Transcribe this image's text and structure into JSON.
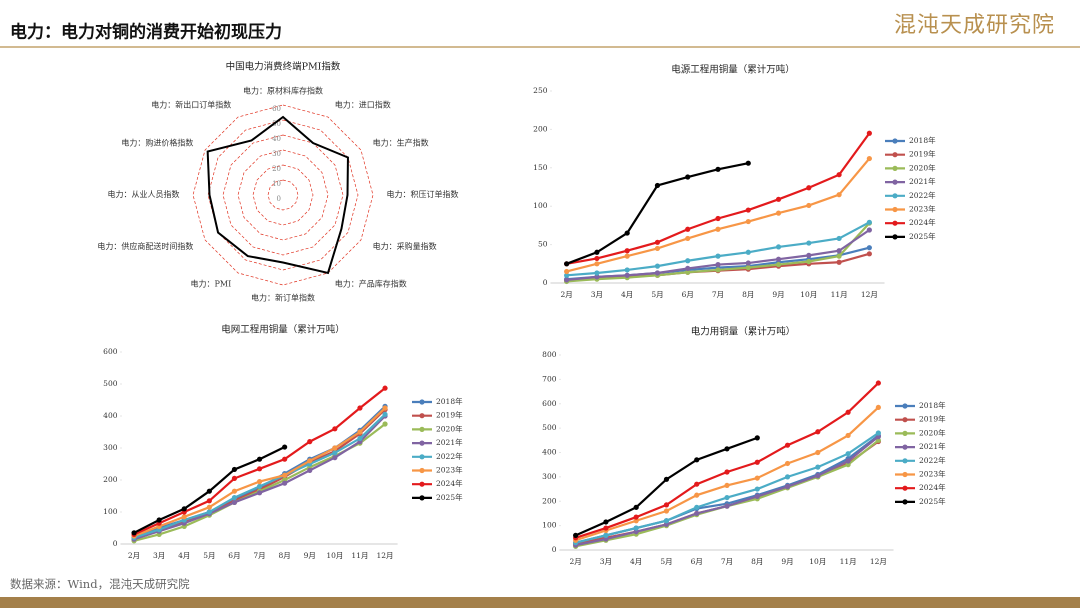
{
  "header": {
    "title": "电力：电力对铜的消费开始初现压力",
    "logo": "混沌天成研究院"
  },
  "footer": {
    "source": "数据来源：Wind，混沌天成研究院"
  },
  "chart_data": [
    {
      "type": "radar",
      "title": "中国电力消费终端PMI指数",
      "categories": [
        "电力：原材料库存指数",
        "电力：进口指数",
        "电力：生产指数",
        "电力：积压订单指数",
        "电力：采购量指数",
        "电力：产品库存指数",
        "电力：新订单指数",
        "电力：PMI",
        "电力：供应商配送时间指数",
        "电力：从业人员指数",
        "电力：购进价格指数",
        "电力：新出口订单指数"
      ],
      "values": [
        52,
        40,
        50,
        43,
        45,
        60,
        45,
        47,
        50,
        49,
        58,
        42
      ],
      "color": "#000000",
      "grid_color": "#e0301e",
      "ylim": [
        0,
        60
      ],
      "yticks": [
        0,
        10,
        20,
        30,
        40,
        50,
        60
      ]
    },
    {
      "type": "line",
      "title": "电源工程用铜量（累计万吨）",
      "categories": [
        "2月",
        "3月",
        "4月",
        "5月",
        "6月",
        "7月",
        "8月",
        "9月",
        "10月",
        "11月",
        "12月"
      ],
      "ylim": [
        0,
        250
      ],
      "yticks": [
        0,
        50,
        100,
        150,
        200,
        250
      ],
      "series": [
        {
          "name": "2018年",
          "color": "#4a7ebb",
          "values": [
            5,
            8,
            10,
            13,
            17,
            20,
            22,
            27,
            31,
            36,
            46
          ]
        },
        {
          "name": "2019年",
          "color": "#c0504d",
          "values": [
            3,
            6,
            8,
            10,
            14,
            16,
            18,
            22,
            25,
            27,
            38
          ]
        },
        {
          "name": "2020年",
          "color": "#9bbb59",
          "values": [
            2,
            5,
            7,
            10,
            14,
            17,
            20,
            24,
            28,
            35,
            78
          ]
        },
        {
          "name": "2021年",
          "color": "#8064a2",
          "values": [
            4,
            8,
            10,
            13,
            19,
            24,
            26,
            31,
            36,
            42,
            69
          ]
        },
        {
          "name": "2022年",
          "color": "#4bacc6",
          "values": [
            10,
            13,
            17,
            22,
            29,
            35,
            40,
            47,
            52,
            58,
            79
          ]
        },
        {
          "name": "2023年",
          "color": "#f79646",
          "values": [
            15,
            25,
            35,
            45,
            58,
            70,
            80,
            91,
            101,
            115,
            162
          ]
        },
        {
          "name": "2024年",
          "color": "#e31a1c",
          "values": [
            25,
            32,
            42,
            53,
            70,
            84,
            95,
            109,
            124,
            141,
            195
          ]
        },
        {
          "name": "2025年",
          "color": "#000000",
          "values": [
            25,
            40,
            65,
            127,
            138,
            148,
            156,
            null,
            null,
            null,
            null
          ]
        }
      ]
    },
    {
      "type": "line",
      "title": "电网工程用铜量（累计万吨）",
      "categories": [
        "2月",
        "3月",
        "4月",
        "5月",
        "6月",
        "7月",
        "8月",
        "9月",
        "10月",
        "11月",
        "12月"
      ],
      "ylim": [
        0,
        600
      ],
      "yticks": [
        0,
        100,
        200,
        300,
        400,
        500,
        600
      ],
      "series": [
        {
          "name": "2018年",
          "color": "#4a7ebb",
          "values": [
            25,
            50,
            75,
            100,
            140,
            175,
            220,
            265,
            300,
            355,
            430
          ]
        },
        {
          "name": "2019年",
          "color": "#c0504d",
          "values": [
            20,
            45,
            70,
            95,
            135,
            170,
            210,
            255,
            290,
            345,
            420
          ]
        },
        {
          "name": "2020年",
          "color": "#9bbb59",
          "values": [
            10,
            30,
            55,
            90,
            130,
            165,
            200,
            240,
            275,
            315,
            375
          ]
        },
        {
          "name": "2021年",
          "color": "#8064a2",
          "values": [
            15,
            40,
            65,
            95,
            130,
            160,
            190,
            230,
            270,
            320,
            400
          ]
        },
        {
          "name": "2022年",
          "color": "#4bacc6",
          "values": [
            20,
            45,
            75,
            100,
            145,
            180,
            215,
            250,
            285,
            330,
            405
          ]
        },
        {
          "name": "2023年",
          "color": "#f79646",
          "values": [
            25,
            55,
            85,
            115,
            165,
            195,
            215,
            260,
            300,
            350,
            425
          ]
        },
        {
          "name": "2024年",
          "color": "#e31a1c",
          "values": [
            30,
            65,
            100,
            135,
            205,
            235,
            265,
            320,
            360,
            425,
            487
          ]
        },
        {
          "name": "2025年",
          "color": "#000000",
          "values": [
            35,
            75,
            110,
            165,
            233,
            265,
            303,
            null,
            null,
            null,
            null
          ]
        }
      ]
    },
    {
      "type": "line",
      "title": "电力用铜量（累计万吨）",
      "categories": [
        "2月",
        "3月",
        "4月",
        "5月",
        "6月",
        "7月",
        "8月",
        "9月",
        "10月",
        "11月",
        "12月"
      ],
      "ylim": [
        0,
        800
      ],
      "yticks": [
        0,
        100,
        200,
        300,
        400,
        500,
        600,
        700,
        800
      ],
      "series": [
        {
          "name": "2018年",
          "color": "#4a7ebb",
          "values": [
            30,
            60,
            90,
            120,
            170,
            190,
            225,
            265,
            310,
            375,
            470
          ]
        },
        {
          "name": "2019年",
          "color": "#c0504d",
          "values": [
            25,
            50,
            75,
            105,
            150,
            180,
            215,
            260,
            300,
            355,
            445
          ]
        },
        {
          "name": "2020年",
          "color": "#9bbb59",
          "values": [
            15,
            40,
            65,
            100,
            145,
            180,
            210,
            255,
            300,
            350,
            450
          ]
        },
        {
          "name": "2021年",
          "color": "#8064a2",
          "values": [
            20,
            45,
            75,
            105,
            150,
            180,
            220,
            260,
            305,
            365,
            465
          ]
        },
        {
          "name": "2022年",
          "color": "#4bacc6",
          "values": [
            30,
            60,
            90,
            120,
            175,
            215,
            250,
            300,
            340,
            395,
            480
          ]
        },
        {
          "name": "2023年",
          "color": "#f79646",
          "values": [
            40,
            80,
            120,
            160,
            225,
            265,
            295,
            355,
            400,
            470,
            585
          ]
        },
        {
          "name": "2024年",
          "color": "#e31a1c",
          "values": [
            50,
            90,
            135,
            185,
            270,
            320,
            360,
            430,
            485,
            565,
            685
          ]
        },
        {
          "name": "2025年",
          "color": "#000000",
          "values": [
            60,
            115,
            175,
            290,
            370,
            415,
            460,
            null,
            null,
            null,
            null
          ]
        }
      ]
    }
  ]
}
